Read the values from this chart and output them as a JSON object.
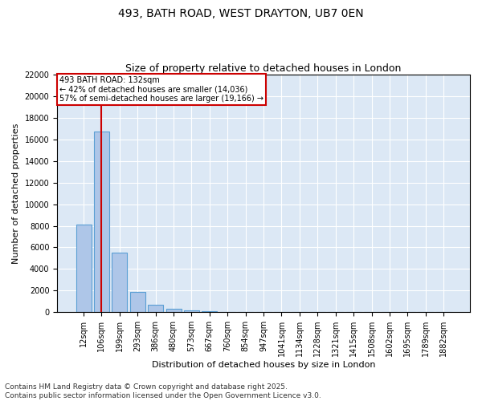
{
  "title1": "493, BATH ROAD, WEST DRAYTON, UB7 0EN",
  "title2": "Size of property relative to detached houses in London",
  "xlabel": "Distribution of detached houses by size in London",
  "ylabel": "Number of detached properties",
  "categories": [
    "12sqm",
    "106sqm",
    "199sqm",
    "293sqm",
    "386sqm",
    "480sqm",
    "573sqm",
    "667sqm",
    "760sqm",
    "854sqm",
    "947sqm",
    "1041sqm",
    "1134sqm",
    "1228sqm",
    "1321sqm",
    "1415sqm",
    "1508sqm",
    "1602sqm",
    "1695sqm",
    "1789sqm",
    "1882sqm"
  ],
  "values": [
    8100,
    16700,
    5500,
    1900,
    650,
    350,
    200,
    80,
    50,
    30,
    20,
    15,
    10,
    8,
    6,
    5,
    4,
    3,
    2,
    2,
    1
  ],
  "bar_color": "#aec6e8",
  "bar_edge_color": "#5a9fd4",
  "background_color": "#dce8f5",
  "grid_color": "#ffffff",
  "vline_x": 1,
  "vline_color": "#cc0000",
  "annotation_text": "493 BATH ROAD: 132sqm\n← 42% of detached houses are smaller (14,036)\n57% of semi-detached houses are larger (19,166) →",
  "annotation_box_color": "#cc0000",
  "ylim": [
    0,
    22000
  ],
  "yticks": [
    0,
    2000,
    4000,
    6000,
    8000,
    10000,
    12000,
    14000,
    16000,
    18000,
    20000,
    22000
  ],
  "footnote": "Contains HM Land Registry data © Crown copyright and database right 2025.\nContains public sector information licensed under the Open Government Licence v3.0.",
  "title_fontsize": 10,
  "subtitle_fontsize": 9,
  "axis_fontsize": 8,
  "tick_fontsize": 7,
  "footnote_fontsize": 6.5
}
